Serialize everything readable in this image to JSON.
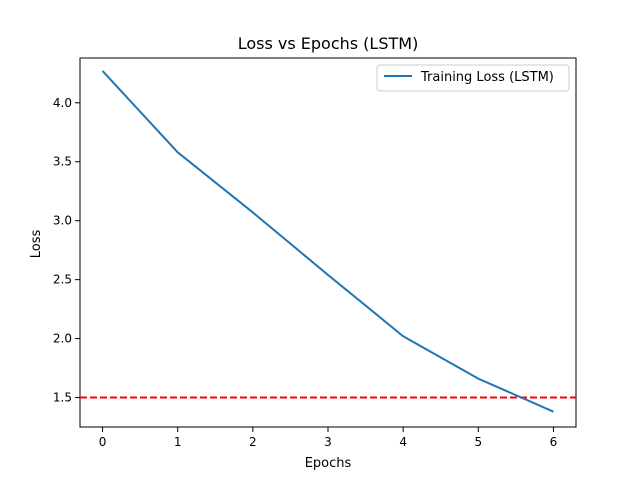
{
  "chart_data": {
    "type": "line",
    "title": "Loss vs Epochs (LSTM)",
    "xlabel": "Epochs",
    "ylabel": "Loss",
    "xlim": [
      -0.3,
      6.3
    ],
    "ylim": [
      1.25,
      4.38
    ],
    "xticks": [
      0,
      1,
      2,
      3,
      4,
      5,
      6
    ],
    "yticks": [
      1.5,
      2.0,
      2.5,
      3.0,
      3.5,
      4.0
    ],
    "xtick_labels": [
      "0",
      "1",
      "2",
      "3",
      "4",
      "5",
      "6"
    ],
    "ytick_labels": [
      "1.5",
      "2.0",
      "2.5",
      "3.0",
      "3.5",
      "4.0"
    ],
    "grid": false,
    "legend_position": "top-right",
    "series": [
      {
        "name": "Training Loss (LSTM)",
        "color": "#1f77b4",
        "x": [
          0,
          1,
          2,
          3,
          4,
          5,
          6
        ],
        "values": [
          4.27,
          3.58,
          3.07,
          2.54,
          2.02,
          1.66,
          1.38
        ]
      }
    ],
    "reference_line": {
      "orientation": "horizontal",
      "y": 1.5,
      "color": "#ff0000",
      "style": "dashed"
    }
  }
}
